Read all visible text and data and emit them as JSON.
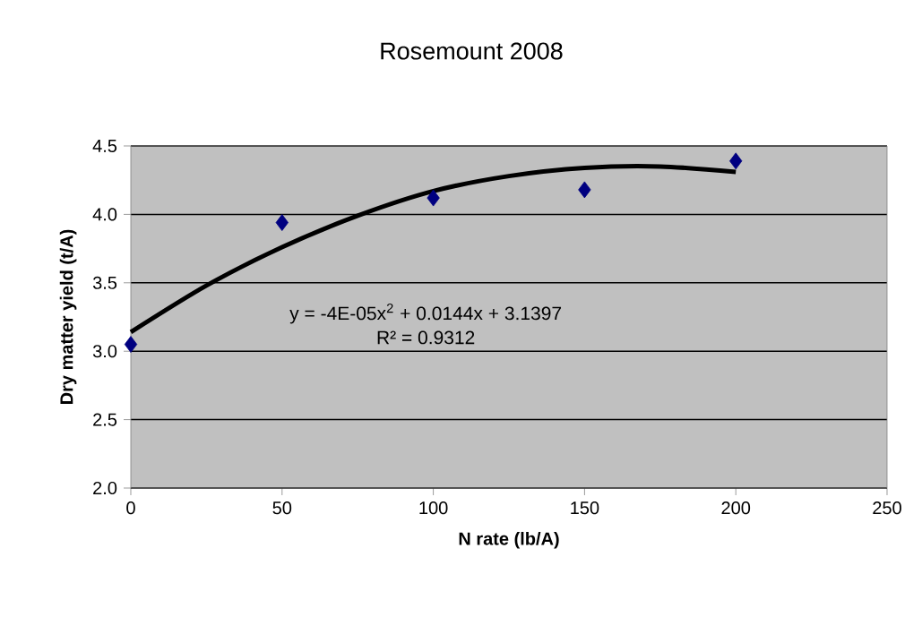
{
  "chart_data": {
    "type": "scatter",
    "title": "Rosemount 2008",
    "xlabel": "N rate (lb/A)",
    "ylabel": "Dry matter yield (t/A)",
    "x": [
      0,
      50,
      100,
      150,
      200
    ],
    "series": [
      {
        "color": "#000080",
        "values": [
          3.05,
          3.94,
          4.12,
          4.18,
          4.39
        ],
        "marker": "diamond"
      },
      {
        "type": "line",
        "color": "#000000",
        "marker": "none",
        "x": [
          0,
          25,
          50,
          75,
          100,
          125,
          150,
          175,
          200
        ],
        "values": [
          3.14,
          3.48,
          3.76,
          3.99,
          4.17,
          4.28,
          4.34,
          4.35,
          4.31
        ]
      }
    ],
    "xlim": [
      0,
      250
    ],
    "xticks": [
      0,
      50,
      100,
      150,
      200,
      250
    ],
    "ylim": [
      2,
      4.5
    ],
    "yticks": [
      {
        "value": 2,
        "label": "2.0"
      },
      {
        "value": 2.5,
        "label": "2.5"
      },
      {
        "value": 3,
        "label": "3.0"
      },
      {
        "value": 3.5,
        "label": "3.5"
      },
      {
        "value": 4,
        "label": "4.0"
      },
      {
        "value": 4.5,
        "label": "4.5"
      }
    ],
    "grid": "y",
    "annotations": [
      "y = -4E-05x$^{2}$ + 0.0144x + 3.1397",
      "R² = 0.9312"
    ]
  }
}
